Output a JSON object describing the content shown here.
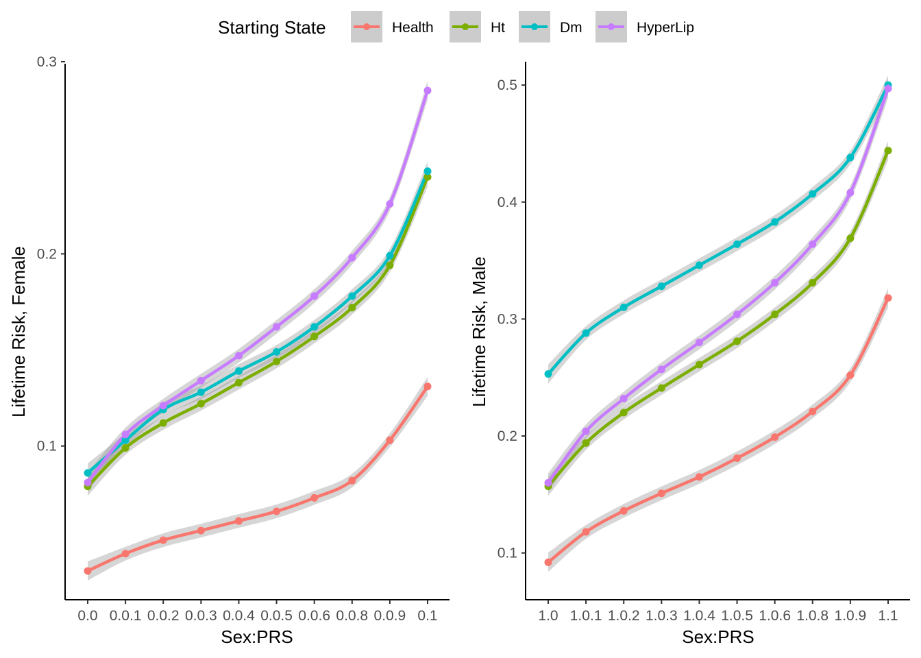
{
  "legend": {
    "title": "Starting State",
    "entries": [
      {
        "name": "Health",
        "color": "#F8766D"
      },
      {
        "name": "Ht",
        "color": "#7CAE00"
      },
      {
        "name": "Dm",
        "color": "#00BFC4"
      },
      {
        "name": "HyperLip",
        "color": "#C77CFF"
      }
    ]
  },
  "chart_data": [
    {
      "type": "line",
      "xlabel": "Sex:PRS",
      "ylabel": "Lifetime Risk, Female",
      "categories": [
        "0.0",
        "0.0.1",
        "0.0.2",
        "0.0.3",
        "0.0.4",
        "0.0.5",
        "0.0.6",
        "0.0.8",
        "0.0.9",
        "0.1"
      ],
      "ylim": [
        0.02,
        0.3
      ],
      "yticks": [
        0.1,
        0.2,
        0.3
      ],
      "ytick_labels": [
        "0.1",
        "0.2",
        "0.3"
      ],
      "grid": false,
      "smoothing_band": true,
      "series": [
        {
          "name": "Health",
          "color": "#F8766D",
          "values": [
            0.035,
            0.044,
            0.051,
            0.056,
            0.061,
            0.066,
            0.073,
            0.082,
            0.103,
            0.131
          ]
        },
        {
          "name": "Ht",
          "color": "#7CAE00",
          "values": [
            0.079,
            0.099,
            0.112,
            0.122,
            0.133,
            0.144,
            0.157,
            0.172,
            0.194,
            0.24
          ]
        },
        {
          "name": "Dm",
          "color": "#00BFC4",
          "values": [
            0.086,
            0.103,
            0.119,
            0.128,
            0.139,
            0.149,
            0.162,
            0.178,
            0.199,
            0.243
          ]
        },
        {
          "name": "HyperLip",
          "color": "#C77CFF",
          "values": [
            0.081,
            0.106,
            0.121,
            0.134,
            0.147,
            0.162,
            0.178,
            0.198,
            0.226,
            0.285
          ]
        }
      ]
    },
    {
      "type": "line",
      "xlabel": "Sex:PRS",
      "ylabel": "Lifetime Risk, Male",
      "categories": [
        "1.0",
        "1.0.1",
        "1.0.2",
        "1.0.3",
        "1.0.4",
        "1.0.5",
        "1.0.6",
        "1.0.8",
        "1.0.9",
        "1.1"
      ],
      "ylim": [
        0.06,
        0.52
      ],
      "yticks": [
        0.1,
        0.2,
        0.3,
        0.4,
        0.5
      ],
      "ytick_labels": [
        "0.1",
        "0.2",
        "0.3",
        "0.4",
        "0.5"
      ],
      "grid": false,
      "smoothing_band": true,
      "series": [
        {
          "name": "Health",
          "color": "#F8766D",
          "values": [
            0.092,
            0.118,
            0.136,
            0.151,
            0.165,
            0.181,
            0.199,
            0.221,
            0.252,
            0.318
          ]
        },
        {
          "name": "Ht",
          "color": "#7CAE00",
          "values": [
            0.157,
            0.194,
            0.22,
            0.241,
            0.261,
            0.281,
            0.304,
            0.331,
            0.369,
            0.444
          ]
        },
        {
          "name": "Dm",
          "color": "#00BFC4",
          "values": [
            0.253,
            0.288,
            0.31,
            0.328,
            0.346,
            0.364,
            0.383,
            0.407,
            0.438,
            0.5
          ]
        },
        {
          "name": "HyperLip",
          "color": "#C77CFF",
          "values": [
            0.16,
            0.204,
            0.232,
            0.257,
            0.28,
            0.304,
            0.331,
            0.364,
            0.408,
            0.497
          ]
        }
      ]
    }
  ]
}
